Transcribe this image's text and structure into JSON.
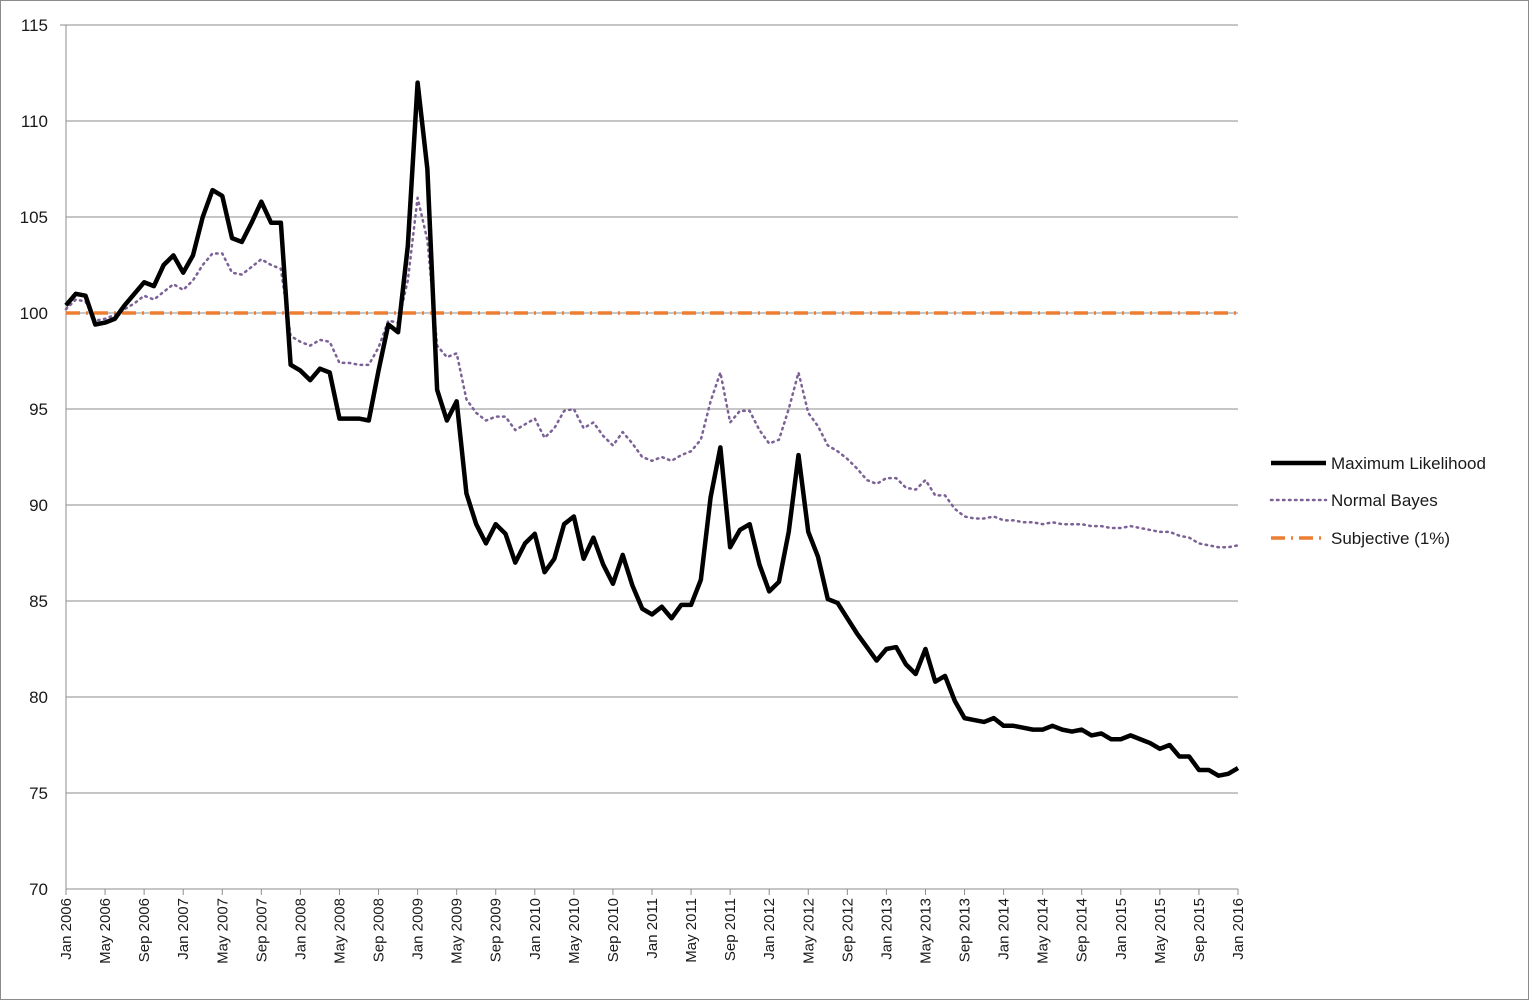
{
  "chart_data": {
    "type": "line",
    "title": "",
    "xlabel": "",
    "ylabel": "",
    "ylim": [
      70,
      115
    ],
    "y_ticks": [
      70,
      75,
      80,
      85,
      90,
      95,
      100,
      105,
      110,
      115
    ],
    "x_tick_labels": [
      "Jan 2006",
      "May 2006",
      "Sep 2006",
      "Jan 2007",
      "May 2007",
      "Sep 2007",
      "Jan 2008",
      "May 2008",
      "Sep 2008",
      "Jan 2009",
      "May 2009",
      "Sep 2009",
      "Jan 2010",
      "May 2010",
      "Sep 2010",
      "Jan 2011",
      "May 2011",
      "Sep 2011",
      "Jan 2012",
      "May 2012",
      "Sep 2012",
      "Jan 2013",
      "May 2013",
      "Sep 2013",
      "Jan 2014",
      "May 2014",
      "Sep 2014",
      "Jan 2015",
      "May 2015",
      "Sep 2015",
      "Jan 2016"
    ],
    "months_total": 121,
    "grid": "horizontal",
    "legend_position": "right",
    "series": [
      {
        "name": "Maximum Likelihood",
        "color": "#000000",
        "style": "solid",
        "values": [
          100.4,
          101.0,
          100.9,
          99.4,
          99.5,
          99.7,
          100.4,
          101.0,
          101.6,
          101.4,
          102.5,
          103.0,
          102.1,
          103.0,
          105.0,
          106.4,
          106.1,
          103.9,
          103.7,
          104.7,
          105.8,
          104.7,
          104.7,
          97.3,
          97.0,
          96.5,
          97.1,
          96.9,
          94.5,
          94.5,
          94.5,
          94.4,
          97.0,
          99.4,
          99.0,
          103.5,
          112.0,
          107.5,
          96.0,
          94.4,
          95.4,
          90.6,
          89.0,
          88.0,
          89.0,
          88.5,
          87.0,
          88.0,
          88.5,
          86.5,
          87.2,
          89.0,
          89.4,
          87.2,
          88.3,
          86.9,
          85.9,
          87.4,
          85.8,
          84.6,
          84.3,
          84.7,
          84.1,
          84.8,
          84.8,
          86.1,
          90.4,
          93.0,
          87.8,
          88.7,
          89.0,
          86.9,
          85.5,
          86.0,
          88.6,
          92.6,
          88.6,
          87.3,
          85.1,
          84.9,
          84.1,
          83.3,
          82.6,
          81.9,
          82.5,
          82.6,
          81.7,
          81.2,
          82.5,
          80.8,
          81.1,
          79.8,
          78.9,
          78.8,
          78.7,
          78.9,
          78.5,
          78.5,
          78.4,
          78.3,
          78.3,
          78.5,
          78.3,
          78.2,
          78.3,
          78.0,
          78.1,
          77.8,
          77.8,
          78.0,
          77.8,
          77.6,
          77.3,
          77.5,
          76.9,
          76.9,
          76.2,
          76.2,
          75.9,
          76.0,
          76.3
        ]
      },
      {
        "name": "Normal Bayes",
        "color": "#7b6195",
        "style": "dotted",
        "values": [
          100.2,
          100.7,
          100.6,
          99.6,
          99.7,
          99.9,
          100.2,
          100.5,
          100.9,
          100.7,
          101.1,
          101.5,
          101.2,
          101.7,
          102.5,
          103.1,
          103.1,
          102.1,
          102.0,
          102.4,
          102.8,
          102.5,
          102.3,
          98.8,
          98.5,
          98.3,
          98.6,
          98.5,
          97.4,
          97.4,
          97.3,
          97.3,
          98.2,
          99.6,
          99.5,
          101.7,
          106.0,
          103.8,
          98.3,
          97.7,
          97.9,
          95.5,
          94.8,
          94.4,
          94.6,
          94.6,
          93.9,
          94.2,
          94.5,
          93.5,
          94.0,
          94.9,
          95.0,
          94.0,
          94.3,
          93.6,
          93.1,
          93.8,
          93.2,
          92.5,
          92.3,
          92.5,
          92.3,
          92.6,
          92.8,
          93.4,
          95.4,
          96.9,
          94.3,
          94.9,
          94.9,
          93.9,
          93.2,
          93.4,
          95.0,
          96.9,
          94.8,
          94.1,
          93.1,
          92.8,
          92.4,
          91.9,
          91.3,
          91.1,
          91.4,
          91.4,
          90.9,
          90.8,
          91.3,
          90.5,
          90.5,
          89.8,
          89.4,
          89.3,
          89.3,
          89.4,
          89.2,
          89.2,
          89.1,
          89.1,
          89.0,
          89.1,
          89.0,
          89.0,
          89.0,
          88.9,
          88.9,
          88.8,
          88.8,
          88.9,
          88.8,
          88.7,
          88.6,
          88.6,
          88.4,
          88.3,
          88.0,
          87.9,
          87.8,
          87.8,
          87.9
        ]
      },
      {
        "name": "Subjective (1%)",
        "color": "#ed7d31",
        "style": "dashdot",
        "values": [
          100
        ]
      }
    ]
  }
}
